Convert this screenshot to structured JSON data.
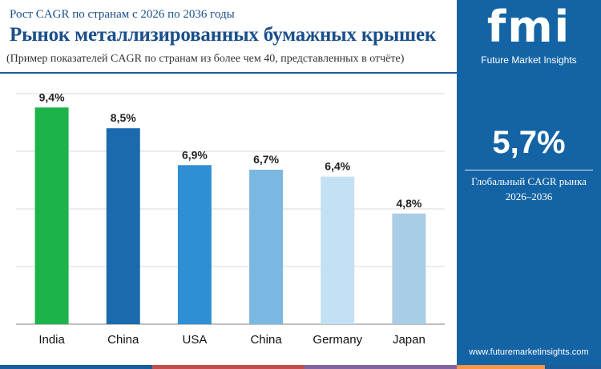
{
  "header": {
    "subtitle": "Рост CAGR по странам с 2026 по 2036 годы",
    "title": "Рынок металлизированных бумажных крышек",
    "note": "(Пример показателей CAGR по странам из более чем 40, представленных в отчёте)"
  },
  "chart_data": {
    "type": "bar",
    "categories": [
      "India",
      "China",
      "USA",
      "China",
      "Germany",
      "Japan"
    ],
    "values": [
      9.4,
      8.5,
      6.9,
      6.7,
      6.4,
      4.8
    ],
    "labels": [
      "9,4%",
      "8,5%",
      "6,9%",
      "6,7%",
      "6,4%",
      "4,8%"
    ],
    "colors": [
      "#1cb34a",
      "#1a6aad",
      "#2e8fd4",
      "#7ab8e2",
      "#c3e0f4",
      "#a9cde6"
    ],
    "ylim": [
      0,
      10
    ],
    "grid": true,
    "legend": "none"
  },
  "side_panel": {
    "logo_mark": "fmi",
    "logo_text": "Future Market Insights",
    "global_value": "5,7%",
    "global_label": "Глобальный CAGR рынка",
    "global_period": "2026–2036",
    "website": "www.futuremarketinsights.com",
    "background": "#1464a5"
  },
  "footer_colors": [
    "#1a5d9a",
    "#c0504d",
    "#8064a2",
    "#f79646",
    "#1a5d9a"
  ]
}
